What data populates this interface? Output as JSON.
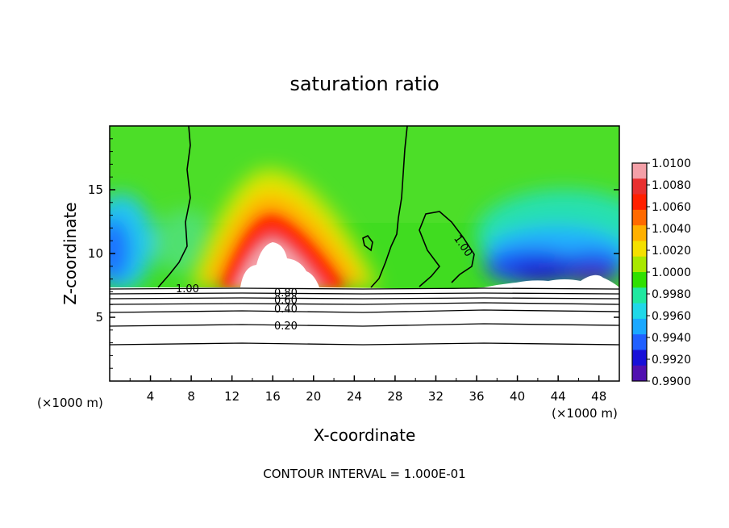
{
  "chart_data": {
    "type": "heatmap",
    "title": "saturation ratio",
    "xlabel": "X-coordinate",
    "ylabel": "Z-coordinate",
    "x_unit": "(×1000 m)",
    "y_unit": "(×1000 m)",
    "xlim": [
      0,
      50
    ],
    "ylim": [
      0,
      20
    ],
    "x_ticks": [
      4,
      8,
      12,
      16,
      20,
      24,
      28,
      32,
      36,
      40,
      44,
      48
    ],
    "y_ticks": [
      5,
      10,
      15
    ],
    "colorbar": {
      "ticks": [
        "1.0100",
        "1.0080",
        "1.0060",
        "1.0040",
        "1.0020",
        "1.0000",
        "0.9980",
        "0.9960",
        "0.9940",
        "0.9920",
        "0.9900"
      ],
      "colors": [
        "#f4a0a8",
        "#e83030",
        "#ff2000",
        "#ff6a00",
        "#ffb000",
        "#f4e000",
        "#a8e800",
        "#30e000",
        "#20e8a0",
        "#20d8e8",
        "#1aa8ff",
        "#2060ff",
        "#1810d8",
        "#5010b0"
      ]
    },
    "contour_labels": [
      "1.00",
      "1.00",
      "0.80",
      "0.60",
      "0.40",
      "0.20"
    ],
    "contour_values": [
      0.2,
      0.4,
      0.6,
      0.8,
      1.0
    ],
    "footer": "CONTOUR INTERVAL = 1.000E-01"
  }
}
